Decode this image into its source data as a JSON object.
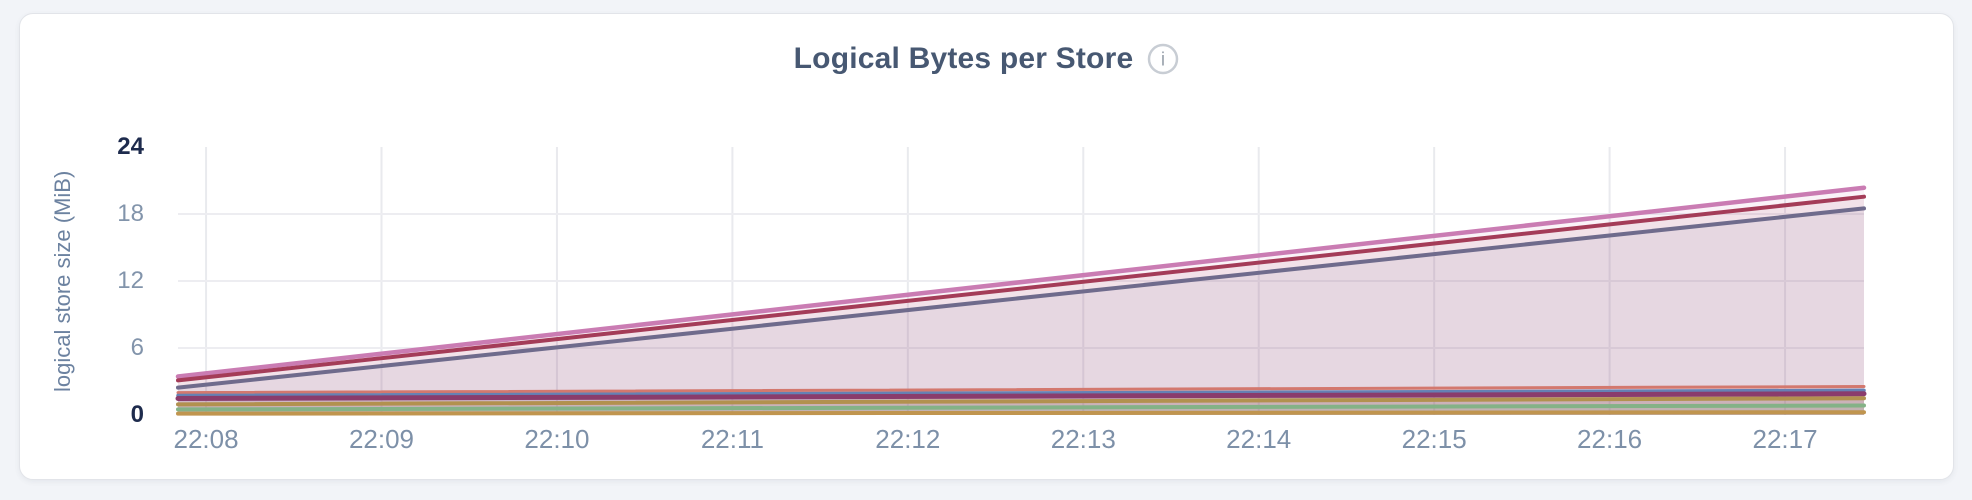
{
  "page": {
    "background_color": "#f2f4f8",
    "card_background_color": "#ffffff",
    "card_border_color": "#e2e4e9"
  },
  "header": {
    "title": "Logical Bytes per Store",
    "title_color": "#475872",
    "info_icon": "info-icon",
    "info_icon_glyph": "i",
    "info_icon_ring_color": "#c8cdd4",
    "info_icon_text_color": "#9aa3ad"
  },
  "axis_styles": {
    "y_tick_color": "#8294ab",
    "y_tick_emphasis_color": "#1e2b4d",
    "x_tick_color": "#7d90a8",
    "y_axis_title_color": "#6c82a0"
  },
  "chart_data": {
    "type": "area",
    "title": "Logical Bytes per Store",
    "xlabel": "",
    "ylabel": "logical store size (MiB)",
    "ylim": [
      0,
      24
    ],
    "x_domain_minutes": [
      -0.16,
      9.45
    ],
    "legend": "none",
    "grid": {
      "vertical": true,
      "horizontal": true,
      "vline_color": "#e9eaee",
      "hline_color": "#ededf1",
      "horizontal_at": [
        6,
        12,
        18
      ]
    },
    "yticks": [
      {
        "value": 24,
        "label": "24",
        "emphasis": true
      },
      {
        "value": 18,
        "label": "18",
        "emphasis": false
      },
      {
        "value": 12,
        "label": "12",
        "emphasis": false
      },
      {
        "value": 6,
        "label": "6",
        "emphasis": false
      },
      {
        "value": 0,
        "label": "0",
        "emphasis": true
      }
    ],
    "xticks": [
      {
        "t": 0,
        "label": "22:08"
      },
      {
        "t": 1,
        "label": "22:09"
      },
      {
        "t": 2,
        "label": "22:10"
      },
      {
        "t": 3,
        "label": "22:11"
      },
      {
        "t": 4,
        "label": "22:12"
      },
      {
        "t": 5,
        "label": "22:13"
      },
      {
        "t": 6,
        "label": "22:14"
      },
      {
        "t": 7,
        "label": "22:15"
      },
      {
        "t": 8,
        "label": "22:16"
      },
      {
        "t": 9,
        "label": "22:17"
      }
    ],
    "series": [
      {
        "name": "store-series-1",
        "color": "#ca7cb3",
        "line_width": 4.5,
        "fill_opacity": 0.09,
        "points": [
          [
            -0.16,
            3.45
          ],
          [
            9.45,
            20.35
          ]
        ]
      },
      {
        "name": "store-series-2",
        "color": "#a43c58",
        "line_width": 4.0,
        "fill_opacity": 0.09,
        "points": [
          [
            -0.16,
            3.1
          ],
          [
            9.45,
            19.55
          ]
        ]
      },
      {
        "name": "store-series-3",
        "color": "#6f6b8c",
        "line_width": 4.0,
        "fill_opacity": 0.09,
        "points": [
          [
            -0.16,
            2.45
          ],
          [
            9.45,
            18.5
          ]
        ]
      },
      {
        "name": "store-series-4",
        "color": "#d3786e",
        "line_width": 3.0,
        "fill_opacity": 0.1,
        "points": [
          [
            -0.16,
            2.0
          ],
          [
            9.45,
            2.55
          ]
        ]
      },
      {
        "name": "store-series-5",
        "color": "#6581b4",
        "line_width": 3.5,
        "fill_opacity": 0.1,
        "points": [
          [
            -0.16,
            1.75
          ],
          [
            9.45,
            2.2
          ]
        ]
      },
      {
        "name": "store-series-6",
        "color": "#8a3c6c",
        "line_width": 5.0,
        "fill_opacity": 0.1,
        "points": [
          [
            -0.16,
            1.48
          ],
          [
            9.45,
            1.9
          ]
        ]
      },
      {
        "name": "store-series-7",
        "color": "#b2914f",
        "line_width": 4.0,
        "fill_opacity": 0.1,
        "points": [
          [
            -0.16,
            0.95
          ],
          [
            9.45,
            1.5
          ]
        ]
      },
      {
        "name": "store-series-8",
        "color": "#84b287",
        "line_width": 4.0,
        "fill_opacity": 0.12,
        "points": [
          [
            -0.16,
            0.5
          ],
          [
            9.45,
            0.85
          ]
        ]
      },
      {
        "name": "store-series-9",
        "color": "#c0954f",
        "line_width": 4.0,
        "fill_opacity": 0.1,
        "points": [
          [
            -0.16,
            0.12
          ],
          [
            9.45,
            0.25
          ]
        ]
      }
    ]
  }
}
